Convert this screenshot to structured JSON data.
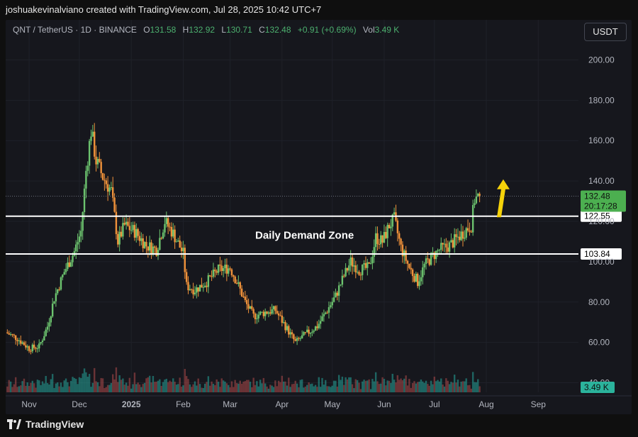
{
  "caption": "joshuakevinalviano created with TradingView.com, Jul 28, 2025 10:42 UTC+7",
  "legend": {
    "symbol": "QNT / TetherUS · 1D · BINANCE",
    "o_label": "O",
    "o": "131.58",
    "h_label": "H",
    "h": "132.92",
    "l_label": "L",
    "l": "130.71",
    "c_label": "C",
    "c": "132.48",
    "change": "+0.91 (+0.69%)",
    "vol_label": "Vol",
    "vol": "3.49 K"
  },
  "currency_button": "USDT",
  "footer_brand": "TradingView",
  "colors": {
    "up": "#26a69a",
    "up_candle": "#6cc36e",
    "down": "#f0923a",
    "accent_arrow": "#f5d20a",
    "price_tag": "#4caf50",
    "volume_tag": "#2bb39c"
  },
  "icons": {
    "brand": "tradingview-logo-icon",
    "arrow": "up-arrow-icon"
  },
  "chart_data": {
    "type": "candlestick",
    "y_ticks": [
      "200.00",
      "180.00",
      "160.00",
      "140.00",
      "120.00",
      "100.00",
      "80.00",
      "60.00",
      "40.00"
    ],
    "y_tick_values": [
      200,
      180,
      160,
      140,
      120,
      100,
      80,
      60,
      40
    ],
    "ylim": [
      30,
      210
    ],
    "x_ticks": [
      "Nov",
      "Dec",
      "2025",
      "Feb",
      "Mar",
      "Apr",
      "May",
      "Jun",
      "Jul",
      "Aug",
      "Sep"
    ],
    "x_tick_dates": [
      "2024-11-01",
      "2024-12-01",
      "2025-01-01",
      "2025-02-01",
      "2025-03-01",
      "2025-04-01",
      "2025-05-01",
      "2025-06-01",
      "2025-07-01",
      "2025-08-01",
      "2025-09-01"
    ],
    "x_range": [
      "2024-10-18",
      "2025-09-25"
    ],
    "last_date": "2025-07-28",
    "price_path": [
      [
        "2024-10-18",
        65
      ],
      [
        "2024-10-25",
        62
      ],
      [
        "2024-11-01",
        57
      ],
      [
        "2024-11-07",
        58
      ],
      [
        "2024-11-12",
        68
      ],
      [
        "2024-11-16",
        82
      ],
      [
        "2024-11-22",
        95
      ],
      [
        "2024-11-28",
        105
      ],
      [
        "2024-12-02",
        115
      ],
      [
        "2024-12-05",
        145
      ],
      [
        "2024-12-08",
        165
      ],
      [
        "2024-12-11",
        150
      ],
      [
        "2024-12-15",
        142
      ],
      [
        "2024-12-20",
        135
      ],
      [
        "2024-12-24",
        110
      ],
      [
        "2024-12-28",
        118
      ],
      [
        "2025-01-03",
        115
      ],
      [
        "2025-01-10",
        108
      ],
      [
        "2025-01-16",
        106
      ],
      [
        "2025-01-21",
        120
      ],
      [
        "2025-01-26",
        114
      ],
      [
        "2025-02-01",
        104
      ],
      [
        "2025-02-03",
        88
      ],
      [
        "2025-02-08",
        86
      ],
      [
        "2025-02-15",
        90
      ],
      [
        "2025-02-22",
        96
      ],
      [
        "2025-03-01",
        97
      ],
      [
        "2025-03-05",
        90
      ],
      [
        "2025-03-10",
        80
      ],
      [
        "2025-03-15",
        73
      ],
      [
        "2025-03-22",
        75
      ],
      [
        "2025-03-28",
        76
      ],
      [
        "2025-04-03",
        68
      ],
      [
        "2025-04-09",
        60
      ],
      [
        "2025-04-15",
        64
      ],
      [
        "2025-04-22",
        68
      ],
      [
        "2025-04-28",
        76
      ],
      [
        "2025-05-03",
        83
      ],
      [
        "2025-05-08",
        93
      ],
      [
        "2025-05-12",
        100
      ],
      [
        "2025-05-17",
        96
      ],
      [
        "2025-05-23",
        97
      ],
      [
        "2025-05-27",
        112
      ],
      [
        "2025-05-31",
        110
      ],
      [
        "2025-06-04",
        118
      ],
      [
        "2025-06-07",
        121
      ],
      [
        "2025-06-11",
        107
      ],
      [
        "2025-06-16",
        97
      ],
      [
        "2025-06-21",
        90
      ],
      [
        "2025-06-25",
        98
      ],
      [
        "2025-06-29",
        102
      ],
      [
        "2025-07-04",
        106
      ],
      [
        "2025-07-10",
        108
      ],
      [
        "2025-07-15",
        112
      ],
      [
        "2025-07-20",
        116
      ],
      [
        "2025-07-23",
        118
      ],
      [
        "2025-07-25",
        131
      ],
      [
        "2025-07-28",
        132.48
      ]
    ],
    "last_price": 132.48,
    "last_price_label": "132.48",
    "countdown": "20:17:28",
    "lines": [
      {
        "value": 122.55,
        "label": "122.55"
      },
      {
        "value": 103.84,
        "label": "103.84"
      }
    ],
    "zone_label": "Daily Demand Zone",
    "volume_label": "3.49 K",
    "annotation_arrow": {
      "date": "2025-08-09",
      "from": 122,
      "to": 138
    }
  }
}
